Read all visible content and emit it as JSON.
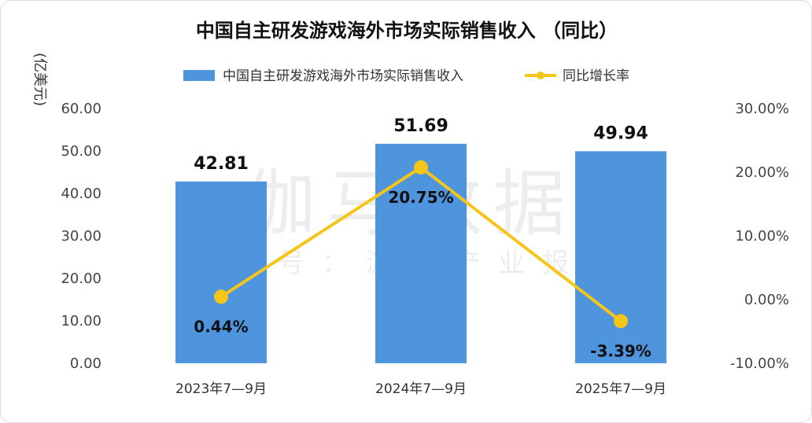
{
  "chart_data": {
    "type": "bar",
    "title": "中国自主研发游戏海外市场实际销售收入 （同比）",
    "ylabel": "(亿美元)",
    "y2label": "",
    "categories": [
      "2023年7—9月",
      "2024年7—9月",
      "2025年7—9月"
    ],
    "series": [
      {
        "name": "中国自主研发游戏海外市场实际销售收入",
        "type": "bar",
        "axis": "left",
        "values": [
          42.81,
          51.69,
          49.94
        ],
        "labels": [
          "42.81",
          "51.69",
          "49.94"
        ],
        "color": "#4f95de"
      },
      {
        "name": "同比增长率",
        "type": "line",
        "axis": "right",
        "values": [
          0.44,
          20.75,
          -3.39
        ],
        "labels": [
          "0.44%",
          "20.75%",
          "-3.39%"
        ],
        "color": "#f5c518"
      }
    ],
    "ylim": [
      0,
      60
    ],
    "yticks": [
      "0.00",
      "10.00",
      "20.00",
      "30.00",
      "40.00",
      "50.00",
      "60.00"
    ],
    "y2lim": [
      -10,
      30
    ],
    "y2ticks": [
      "-10.00%",
      "0.00%",
      "10.00%",
      "20.00%",
      "30.00%"
    ],
    "legend_position": "top-center",
    "grid": false,
    "watermark": {
      "main": "伽马数据",
      "sub": "微信号：游戏产业报告"
    }
  }
}
